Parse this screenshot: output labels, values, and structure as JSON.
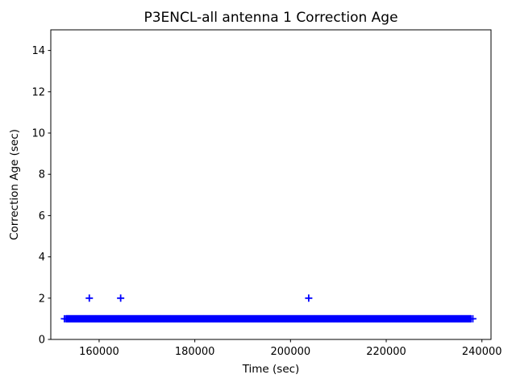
{
  "figure": {
    "background_color": "#ffffff"
  },
  "chart_data": {
    "type": "scatter",
    "title": "P3ENCL-all antenna 1 Correction Age",
    "xlabel": "Time (sec)",
    "ylabel": "Correction Age (sec)",
    "xlim": [
      149900,
      241900
    ],
    "ylim": [
      0,
      15
    ],
    "xticks": [
      160000,
      180000,
      200000,
      220000,
      240000
    ],
    "yticks": [
      0,
      2,
      4,
      6,
      8,
      10,
      12,
      14
    ],
    "grid": false,
    "legend": "none",
    "marker": "plus",
    "marker_color": "#0000ff",
    "axis_color": "#000000",
    "series": [
      {
        "name": "correction-age-band",
        "kind": "dense-range",
        "description": "dense run of + markers at correction age 1 sec spanning nearly the whole time range",
        "y": 1,
        "x_start": 153100,
        "x_end": 237800,
        "x_step": 150
      },
      {
        "name": "band-edge-points",
        "kind": "points",
        "points": [
          {
            "x": 152750,
            "y": 1
          },
          {
            "x": 238100,
            "y": 1
          }
        ]
      },
      {
        "name": "outliers",
        "kind": "points",
        "points": [
          {
            "x": 157950,
            "y": 2
          },
          {
            "x": 164500,
            "y": 2
          },
          {
            "x": 203800,
            "y": 2
          }
        ]
      }
    ]
  }
}
